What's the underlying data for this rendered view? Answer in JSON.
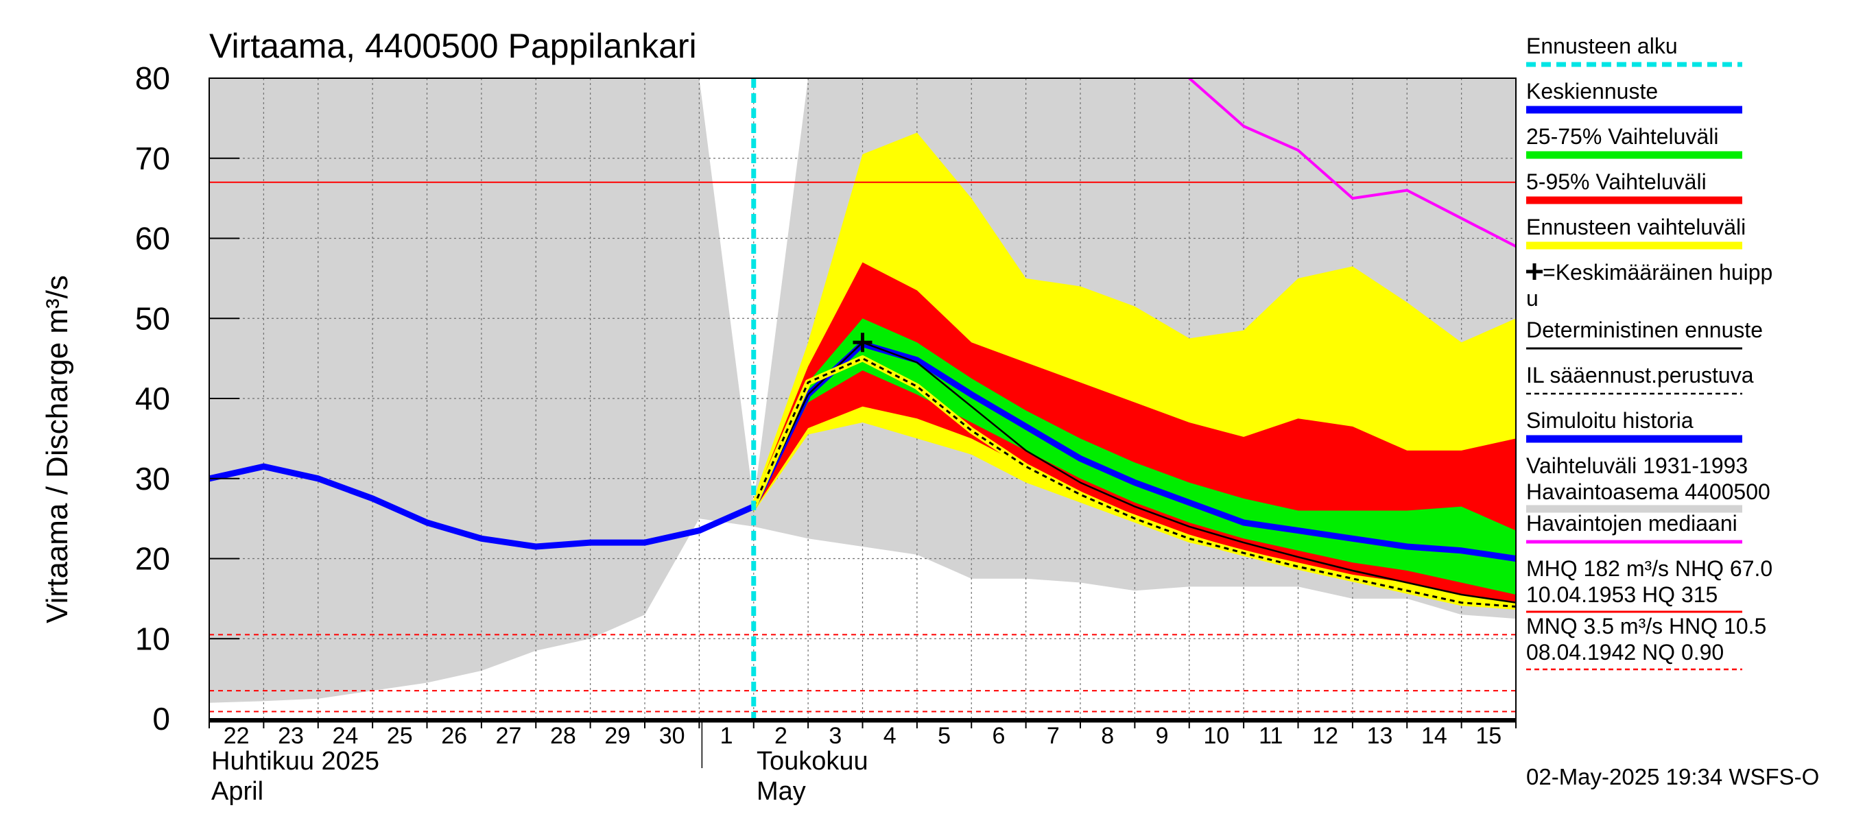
{
  "chart_data": {
    "type": "area",
    "title": "Virtaama, 4400500 Pappilankari",
    "ylabel": "Virtaama / Discharge    m³/s",
    "ylim": [
      0,
      80
    ],
    "yticks": [
      0,
      10,
      20,
      30,
      40,
      50,
      60,
      70,
      80
    ],
    "x_day_labels": [
      "22",
      "23",
      "24",
      "25",
      "26",
      "27",
      "28",
      "29",
      "30",
      "1",
      "2",
      "3",
      "4",
      "5",
      "6",
      "7",
      "8",
      "9",
      "10",
      "11",
      "12",
      "13",
      "14",
      "15"
    ],
    "month_labels": [
      {
        "fi": "Huhtikuu  2025",
        "en": "April"
      },
      {
        "fi": "Toukokuu",
        "en": "May"
      }
    ],
    "x_dates": [
      "2025-04-22",
      "2025-04-23",
      "2025-04-24",
      "2025-04-25",
      "2025-04-26",
      "2025-04-27",
      "2025-04-28",
      "2025-04-29",
      "2025-04-30",
      "2025-05-01",
      "2025-05-02",
      "2025-05-03",
      "2025-05-04",
      "2025-05-05",
      "2025-05-06",
      "2025-05-07",
      "2025-05-08",
      "2025-05-09",
      "2025-05-10",
      "2025-05-11",
      "2025-05-12",
      "2025-05-13",
      "2025-05-14",
      "2025-05-15",
      "2025-05-16"
    ],
    "forecast_start": "2025-05-02",
    "historical_range": {
      "name": "Vaihteluväli 1931-1993  Havaintoasema 4400500",
      "upper": [
        80,
        80,
        80,
        80,
        80,
        80,
        80,
        80,
        80,
        80,
        27,
        80,
        80,
        80,
        80,
        80,
        80,
        80,
        80,
        80,
        80,
        80,
        80,
        80,
        80
      ],
      "lower": [
        2,
        2.2,
        2.5,
        3.5,
        4.5,
        6,
        8.5,
        10,
        13,
        25,
        24,
        22.5,
        21.5,
        20.5,
        17.5,
        17.5,
        17,
        16,
        16.5,
        16.5,
        16.5,
        15,
        15,
        13,
        12.5
      ]
    },
    "forecast_range": {
      "name": "Ennusteen vaihteluväli",
      "dates": [
        "2025-05-02",
        "2025-05-03",
        "2025-05-04",
        "2025-05-05",
        "2025-05-06",
        "2025-05-07",
        "2025-05-08",
        "2025-05-09",
        "2025-05-10",
        "2025-05-11",
        "2025-05-12",
        "2025-05-13",
        "2025-05-14",
        "2025-05-15",
        "2025-05-16"
      ],
      "upper": [
        27.5,
        47,
        70.5,
        73.2,
        65,
        55,
        54,
        51.5,
        47.5,
        48.5,
        55,
        56.5,
        52,
        47,
        50
      ],
      "lower": [
        25.8,
        35.5,
        37,
        35,
        33,
        29.5,
        27,
        24.5,
        22,
        20.5,
        19,
        17.5,
        16,
        14.5,
        13.8
      ]
    },
    "p5_95": {
      "name": "5-95% Vaihteluväli",
      "upper": [
        27.2,
        44,
        57,
        53.5,
        47,
        44.5,
        42,
        39.5,
        37,
        35.2,
        37.5,
        36.5,
        33.5,
        33.5,
        35
      ],
      "lower": [
        26,
        36.3,
        39,
        37.5,
        35,
        31.5,
        28,
        25.5,
        23,
        21,
        19.5,
        18,
        17,
        15.5,
        14.5
      ]
    },
    "p25_75": {
      "name": "25-75% Vaihteluväli",
      "upper": [
        26.8,
        42,
        50,
        47,
        42.5,
        38.5,
        35,
        32,
        29.5,
        27.5,
        26,
        26,
        26,
        26.5,
        23.5
      ],
      "lower": [
        26.2,
        39.5,
        43.5,
        40.5,
        37,
        33.5,
        30,
        27,
        24.5,
        22.5,
        21,
        19.5,
        18.5,
        17,
        15.5
      ]
    },
    "series": [
      {
        "name": "Simuloitu historia",
        "color": "#0000ff",
        "x": [
          "2025-04-22",
          "2025-04-23",
          "2025-04-24",
          "2025-04-25",
          "2025-04-26",
          "2025-04-27",
          "2025-04-28",
          "2025-04-29",
          "2025-04-30",
          "2025-05-01",
          "2025-05-02"
        ],
        "values": [
          30,
          31.5,
          30,
          27.5,
          24.5,
          22.5,
          21.5,
          22,
          22,
          23.5,
          26.5
        ]
      },
      {
        "name": "Keskiennuste",
        "color": "#0000ff",
        "x": [
          "2025-05-02",
          "2025-05-03",
          "2025-05-04",
          "2025-05-05",
          "2025-05-06",
          "2025-05-07",
          "2025-05-08",
          "2025-05-09",
          "2025-05-10",
          "2025-05-11",
          "2025-05-12",
          "2025-05-13",
          "2025-05-14",
          "2025-05-15",
          "2025-05-16"
        ],
        "values": [
          26.5,
          40.5,
          46.8,
          44.8,
          40.5,
          36.5,
          32.5,
          29.5,
          27,
          24.5,
          23.5,
          22.5,
          21.5,
          21,
          20
        ]
      },
      {
        "name": "Deterministinen ennuste",
        "color": "#000000",
        "x": [
          "2025-05-02",
          "2025-05-03",
          "2025-05-04",
          "2025-05-05",
          "2025-05-06",
          "2025-05-07",
          "2025-05-08",
          "2025-05-09",
          "2025-05-10",
          "2025-05-11",
          "2025-05-12",
          "2025-05-13",
          "2025-05-14",
          "2025-05-15",
          "2025-05-16"
        ],
        "values": [
          26.3,
          40.5,
          47,
          44.5,
          39,
          33.5,
          29.5,
          26.5,
          24,
          22,
          20.2,
          18.5,
          17,
          15.5,
          14.5
        ]
      },
      {
        "name": "IL sääennust.perustuva",
        "color": "#000000",
        "x": [
          "2025-05-02",
          "2025-05-03",
          "2025-05-04",
          "2025-05-05",
          "2025-05-06",
          "2025-05-07",
          "2025-05-08",
          "2025-05-09",
          "2025-05-10",
          "2025-05-11",
          "2025-05-12",
          "2025-05-13",
          "2025-05-14",
          "2025-05-15",
          "2025-05-16"
        ],
        "values": [
          26.5,
          42,
          45,
          41.5,
          36,
          31.5,
          28,
          25,
          22.5,
          20.7,
          19,
          17.5,
          16,
          14.5,
          14
        ]
      },
      {
        "name": "Havaintojen mediaani",
        "color": "#ff00ff",
        "x": [
          "2025-05-10",
          "2025-05-11",
          "2025-05-12",
          "2025-05-13",
          "2025-05-14",
          "2025-05-15",
          "2025-05-16"
        ],
        "values": [
          80,
          74,
          71,
          65,
          66,
          62.5,
          59
        ]
      }
    ],
    "peak_marker": {
      "name": "=Keskimääräinen huippu",
      "x": "2025-05-04",
      "value": 47
    },
    "threshold_lines": [
      {
        "name": "NHQ",
        "value": 67.0,
        "style": "solid",
        "color": "#ff0000"
      },
      {
        "name": "HNQ",
        "value": 10.5,
        "style": "dashed",
        "color": "#ff0000"
      },
      {
        "name": "MNQ",
        "value": 3.5,
        "style": "dashed",
        "color": "#ff0000"
      },
      {
        "name": "NQ",
        "value": 0.9,
        "style": "dashed",
        "color": "#ff0000"
      }
    ],
    "legend": [
      {
        "label": "Ennusteen alku",
        "style": "dash",
        "color": "#00e5e5"
      },
      {
        "label": "Keskiennuste",
        "style": "thick",
        "color": "#0000ff"
      },
      {
        "label": "25-75% Vaihteluväli",
        "style": "thick",
        "color": "#00ee00"
      },
      {
        "label": "5-95% Vaihteluväli",
        "style": "thick",
        "color": "#ff0000"
      },
      {
        "label": "Ennusteen vaihteluväli",
        "style": "thick",
        "color": "#ffff00"
      },
      {
        "label": "=Keskimääräinen huipp",
        "label2": "u",
        "style": "plus",
        "color": "#000000"
      },
      {
        "label": "Deterministinen ennuste",
        "style": "thin",
        "color": "#000000"
      },
      {
        "label": "IL sääennust.perustuva",
        "style": "thin-dash",
        "color": "#000000"
      },
      {
        "label": "Simuloitu historia",
        "style": "thick",
        "color": "#0000ff"
      },
      {
        "label": "Vaihteluväli 1931-1993",
        "label2": " Havaintoasema 4400500",
        "style": "thick",
        "color": "#d3d3d3"
      },
      {
        "label": "Havaintojen mediaani",
        "style": "medium",
        "color": "#ff00ff"
      },
      {
        "label": "MHQ  182 m³/s NHQ 67.0",
        "label2": "10.04.1953 HQ  315",
        "style": "thin",
        "color": "#ff0000"
      },
      {
        "label": "MNQ  3.5 m³/s HNQ 10.5",
        "label2": "08.04.1942 NQ 0.90",
        "style": "thin-dash",
        "color": "#ff0000"
      }
    ],
    "timestamp": "02-May-2025 19:34 WSFS-O",
    "grid": true,
    "legend_position": "right"
  }
}
